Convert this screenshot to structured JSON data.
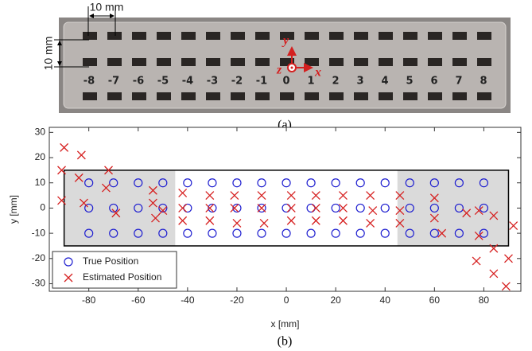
{
  "figure_a": {
    "scale_top": "10 mm",
    "scale_left": "10 mm",
    "plate_labels": [
      "-8",
      "-7",
      "-6",
      "-5",
      "-4",
      "-3",
      "-2",
      "-1",
      "0",
      "1",
      "2",
      "3",
      "4",
      "5",
      "6",
      "7",
      "8"
    ],
    "axis_y": "y",
    "axis_z": "z",
    "axis_x": "x",
    "caption": "(a)"
  },
  "chart_data": {
    "type": "scatter",
    "caption": "(b)",
    "xlabel": "x [mm]",
    "ylabel": "y [mm]",
    "xlim": [
      -96,
      95
    ],
    "ylim": [
      -33,
      32
    ],
    "xticks": [
      -80,
      -60,
      -40,
      -20,
      0,
      20,
      40,
      60,
      80
    ],
    "yticks": [
      -30,
      -20,
      -10,
      0,
      10,
      20,
      30
    ],
    "grid": false,
    "legend": "lower left",
    "regions": [
      {
        "x": [
          -90,
          -45
        ],
        "y": [
          -15,
          15
        ],
        "color": "#dadada"
      },
      {
        "x": [
          45,
          90
        ],
        "y": [
          -15,
          15
        ],
        "color": "#dadada"
      }
    ],
    "outline": {
      "x": [
        -90,
        90
      ],
      "y": [
        -15,
        15
      ],
      "color": "#000000"
    },
    "series": [
      {
        "name": "True Position",
        "color": "#1f1fd0",
        "marker": "o",
        "x": [
          -80,
          -70,
          -60,
          -50,
          -40,
          -30,
          -20,
          -10,
          0,
          10,
          20,
          30,
          40,
          50,
          60,
          70,
          80,
          -80,
          -70,
          -60,
          -50,
          -40,
          -30,
          -20,
          -10,
          0,
          10,
          20,
          30,
          40,
          50,
          60,
          70,
          80,
          -80,
          -70,
          -60,
          -50,
          -40,
          -30,
          -20,
          -10,
          0,
          10,
          20,
          30,
          40,
          50,
          60,
          70,
          80
        ],
        "values": [
          10,
          10,
          10,
          10,
          10,
          10,
          10,
          10,
          10,
          10,
          10,
          10,
          10,
          10,
          10,
          10,
          10,
          0,
          0,
          0,
          0,
          0,
          0,
          0,
          0,
          0,
          0,
          0,
          0,
          0,
          0,
          0,
          0,
          0,
          -10,
          -10,
          -10,
          -10,
          -10,
          -10,
          -10,
          -10,
          -10,
          -10,
          -10,
          -10,
          -10,
          -10,
          -10,
          -10,
          -10
        ]
      },
      {
        "name": "Estimated Position",
        "color": "#d62020",
        "marker": "x",
        "x": [
          -90,
          -91,
          -91,
          -83,
          -84,
          -82,
          -72,
          -73,
          -69,
          -54,
          -54,
          -53,
          -50,
          -42,
          -42,
          -42,
          -31,
          -31,
          -31,
          -21,
          -21,
          -20,
          -10,
          -10,
          -9,
          2,
          2,
          2,
          12,
          12,
          12,
          23,
          23,
          23,
          34,
          35,
          34,
          46,
          46,
          46,
          60,
          60,
          63,
          73,
          78,
          84,
          78,
          77,
          84,
          84,
          90,
          92,
          89
        ],
        "values": [
          24,
          15,
          3,
          21,
          12,
          2,
          15,
          8,
          -2,
          7,
          2,
          -4,
          -1,
          6,
          0,
          -5,
          5,
          0,
          -5,
          5,
          0,
          -6,
          5,
          0,
          -6,
          5,
          0,
          -5,
          5,
          0,
          -5,
          5,
          0,
          -5,
          5,
          -1,
          -6,
          5,
          -1,
          -6,
          4,
          -4,
          -10,
          -2,
          -1,
          -3,
          -11,
          -21,
          -16,
          -26,
          -20,
          -7,
          -31
        ]
      }
    ]
  }
}
